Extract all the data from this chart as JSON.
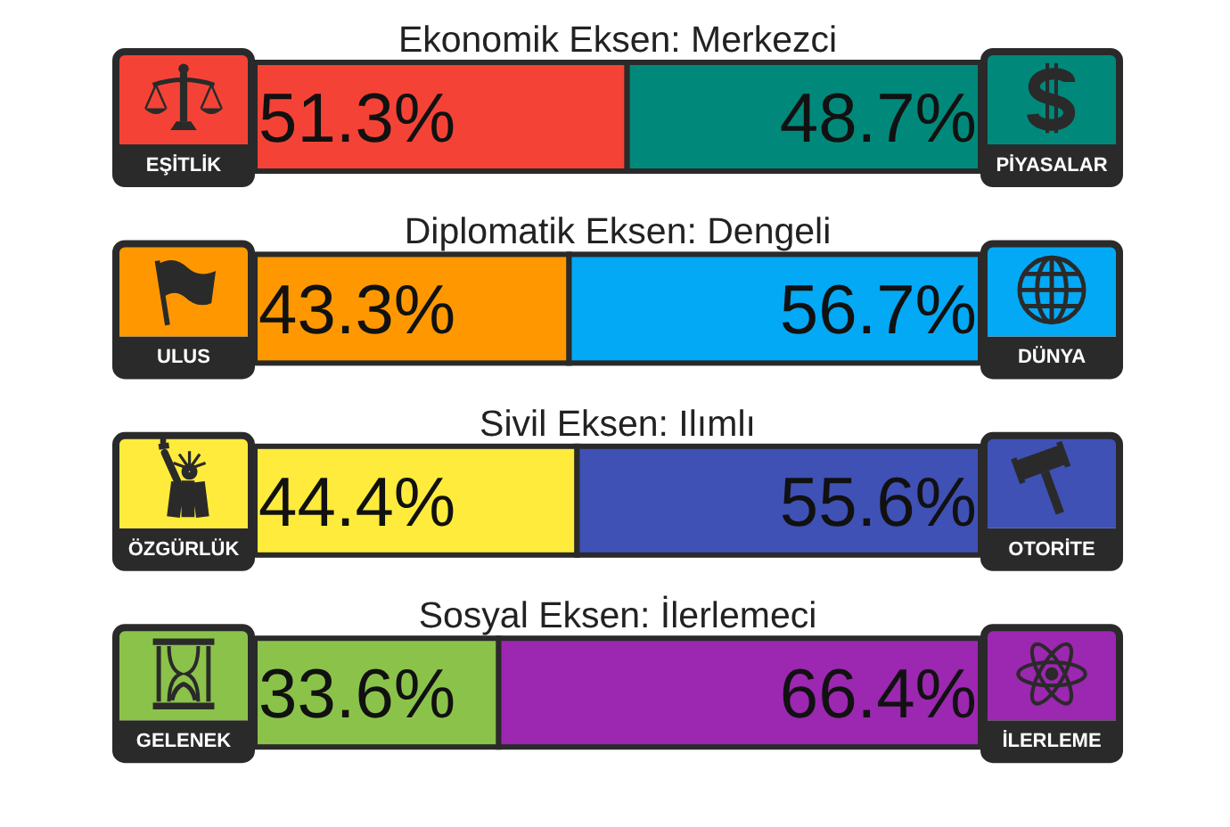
{
  "chart_data": [
    {
      "type": "bar",
      "orientation": "horizontal",
      "stacked": true,
      "title": "Ekonomik Eksen: Merkezci",
      "categories": [
        null
      ],
      "xlim": [
        0,
        100
      ],
      "tick_labels": false,
      "series": [
        {
          "name": "EŞİTLİK",
          "color": "#f44336",
          "values": [
            51.3
          ],
          "value_labels": [
            "51.3%"
          ]
        },
        {
          "name": "PİYASALAR",
          "color": "#00897b",
          "values": [
            48.7
          ],
          "value_labels": [
            "48.7%"
          ]
        }
      ]
    },
    {
      "type": "bar",
      "orientation": "horizontal",
      "stacked": true,
      "title": "Diplomatik Eksen: Dengeli",
      "categories": [
        null
      ],
      "xlim": [
        0,
        100
      ],
      "tick_labels": false,
      "series": [
        {
          "name": "ULUS",
          "color": "#ff9800",
          "values": [
            43.3
          ],
          "value_labels": [
            "43.3%"
          ]
        },
        {
          "name": "DÜNYA",
          "color": "#03a9f4",
          "values": [
            56.7
          ],
          "value_labels": [
            "56.7%"
          ]
        }
      ]
    },
    {
      "type": "bar",
      "orientation": "horizontal",
      "stacked": true,
      "title": "Sivil Eksen: Ilımlı",
      "categories": [
        null
      ],
      "xlim": [
        0,
        100
      ],
      "tick_labels": false,
      "series": [
        {
          "name": "ÖZGÜRLÜK",
          "color": "#ffeb3b",
          "values": [
            44.4
          ],
          "value_labels": [
            "44.4%"
          ]
        },
        {
          "name": "OTORİTE",
          "color": "#3f51b5",
          "values": [
            55.6
          ],
          "value_labels": [
            "55.6%"
          ]
        }
      ]
    },
    {
      "type": "bar",
      "orientation": "horizontal",
      "stacked": true,
      "title": "Sosyal Eksen: İlerlemeci",
      "categories": [
        null
      ],
      "xlim": [
        0,
        100
      ],
      "tick_labels": false,
      "series": [
        {
          "name": "GELENEK",
          "color": "#8bc34a",
          "values": [
            33.6
          ],
          "value_labels": [
            "33.6%"
          ]
        },
        {
          "name": "İLERLEME",
          "color": "#9c27b0",
          "values": [
            66.4
          ],
          "value_labels": [
            "66.4%"
          ]
        }
      ]
    }
  ]
}
